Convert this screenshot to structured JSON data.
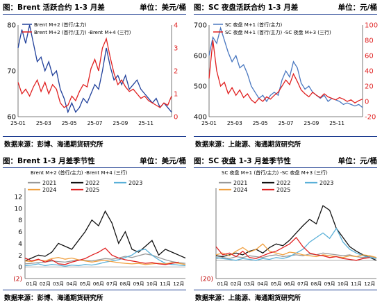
{
  "panels": [
    {
      "title": "图：Brent 活跃合约 1-3 月差",
      "unit": "单位：美元/桶",
      "source": "数据来源：彭博、海通期货研究所"
    },
    {
      "title": "图：SC 夜盘活跃合约 1-3 月差",
      "unit": "单位：元/桶",
      "source": "数据来源：上能源、海通期货研究所"
    },
    {
      "title": "图：Brent 1-3 月差季节性",
      "unit": "单位：美元/桶",
      "source": "数据来源：彭博、海通期货研究所"
    },
    {
      "title": "图：SC 夜盘 1-3 月差季节性",
      "unit": "单位：元/桶",
      "source": "数据来源：上能源、海通期货研究所"
    }
  ],
  "chart_data": [
    {
      "type": "line",
      "x_tick_labels": [
        "25-01",
        "25-03",
        "25-05",
        "25-07",
        "25-09",
        "25-11"
      ],
      "y_left_ticks": [
        "80",
        "70",
        "60"
      ],
      "y_left_lim": [
        60,
        80
      ],
      "y_right_ticks": [
        "4",
        "3",
        "2",
        "1",
        "0"
      ],
      "y_right_lim": [
        0,
        4
      ],
      "series": [
        {
          "name": "Brent M+2 (首行/主力)",
          "axis": "left",
          "color": "#1f3f9a",
          "x": [
            0,
            0.3,
            0.6,
            0.9,
            1.2,
            1.5,
            1.8,
            2.1,
            2.4,
            2.7,
            3.0,
            3.3,
            3.6,
            3.9,
            4.2,
            4.5,
            4.8,
            5.1,
            5.4,
            5.7,
            6.0,
            6.3,
            6.6,
            6.9,
            7.2,
            7.5,
            7.8,
            8.1,
            8.4,
            8.7,
            9.0,
            9.3,
            9.6,
            9.9,
            10.2,
            10.5,
            10.8,
            11.1,
            11.4,
            11.7,
            12.0
          ],
          "values": [
            75,
            79,
            76,
            80,
            76,
            72,
            73,
            70,
            72,
            69,
            70,
            66,
            64,
            61,
            63,
            61,
            62,
            64,
            63,
            65,
            67,
            66,
            70,
            75,
            71,
            68,
            69,
            67,
            69,
            66,
            67,
            68,
            66,
            65,
            64,
            63,
            64,
            62,
            63,
            62,
            61
          ]
        },
        {
          "name": "Brent M+2 (首行/主力) -Brent M+4 (三行)",
          "axis": "right",
          "color": "#e02020",
          "x": [
            0,
            0.3,
            0.6,
            0.9,
            1.2,
            1.5,
            1.8,
            2.1,
            2.4,
            2.7,
            3.0,
            3.3,
            3.6,
            3.9,
            4.2,
            4.5,
            4.8,
            5.1,
            5.4,
            5.7,
            6.0,
            6.3,
            6.6,
            6.9,
            7.2,
            7.5,
            7.8,
            8.1,
            8.4,
            8.7,
            9.0,
            9.3,
            9.6,
            9.9,
            10.2,
            10.5,
            10.8,
            11.1,
            11.4,
            11.7,
            12.0
          ],
          "values": [
            1.5,
            1.0,
            1.2,
            0.9,
            1.3,
            1.6,
            1.1,
            1.5,
            1.0,
            1.4,
            1.2,
            0.6,
            0.4,
            0.5,
            0.9,
            0.7,
            1.1,
            1.4,
            1.3,
            2.1,
            2.5,
            2.0,
            3.0,
            3.4,
            2.6,
            1.9,
            1.4,
            1.6,
            1.3,
            1.1,
            1.2,
            1.0,
            0.8,
            0.9,
            0.7,
            0.6,
            0.5,
            0.4,
            0.6,
            0.5,
            0.9
          ]
        }
      ]
    },
    {
      "type": "line",
      "x_tick_labels": [
        "25-01",
        "25-03",
        "25-05",
        "25-07",
        "25-09",
        "25-11"
      ],
      "y_left_ticks": [
        "700",
        "600",
        "500",
        "400"
      ],
      "y_left_lim": [
        400,
        700
      ],
      "y_right_ticks": [
        "100",
        "80",
        "60",
        "40",
        "20",
        "0",
        "-20"
      ],
      "y_right_lim": [
        -20,
        100
      ],
      "series": [
        {
          "name": "SC 夜盘 M+1 (首行/主力)",
          "axis": "left",
          "color": "#4a78c0",
          "x": [
            0,
            0.3,
            0.6,
            0.9,
            1.2,
            1.5,
            1.8,
            2.1,
            2.4,
            2.7,
            3.0,
            3.3,
            3.6,
            3.9,
            4.2,
            4.5,
            4.8,
            5.1,
            5.4,
            5.7,
            6.0,
            6.3,
            6.6,
            6.9,
            7.2,
            7.5,
            7.8,
            8.1,
            8.4,
            8.7,
            9.0,
            9.3,
            9.6,
            9.9,
            10.2,
            10.5,
            10.8,
            11.1,
            11.4,
            11.7,
            12.0
          ],
          "values": [
            600,
            660,
            640,
            690,
            650,
            610,
            580,
            600,
            560,
            570,
            540,
            500,
            480,
            460,
            470,
            450,
            470,
            480,
            470,
            520,
            550,
            530,
            580,
            560,
            510,
            490,
            500,
            480,
            470,
            460,
            470,
            450,
            460,
            455,
            450,
            440,
            445,
            440,
            435,
            440,
            430
          ]
        },
        {
          "name": "SC 夜盘 M+1 (首行/主力) -SC 夜盘 M+3 (三行)",
          "axis": "right",
          "color": "#e02020",
          "x": [
            0,
            0.3,
            0.6,
            0.9,
            1.2,
            1.5,
            1.8,
            2.1,
            2.4,
            2.7,
            3.0,
            3.3,
            3.6,
            3.9,
            4.2,
            4.5,
            4.8,
            5.1,
            5.4,
            5.7,
            6.0,
            6.3,
            6.6,
            6.9,
            7.2,
            7.5,
            7.8,
            8.1,
            8.4,
            8.7,
            9.0,
            9.3,
            9.6,
            9.9,
            10.2,
            10.5,
            10.8,
            11.1,
            11.4,
            11.7,
            12.0
          ],
          "values": [
            30,
            80,
            40,
            20,
            25,
            10,
            18,
            8,
            15,
            5,
            10,
            2,
            -2,
            4,
            0,
            6,
            3,
            8,
            12,
            20,
            28,
            22,
            36,
            26,
            15,
            10,
            6,
            12,
            8,
            5,
            10,
            6,
            4,
            2,
            5,
            3,
            0,
            2,
            -2,
            1,
            3
          ]
        }
      ]
    },
    {
      "type": "line",
      "x_tick_labels": [
        "01月",
        "02月",
        "03月",
        "04月",
        "05月",
        "06月",
        "07月",
        "08月",
        "09月",
        "10月",
        "11月",
        "12月"
      ],
      "y_ticks": [
        "12",
        "10",
        "8",
        "6",
        "4",
        "2",
        "0",
        "(2)"
      ],
      "ylim": [
        -2,
        12
      ],
      "legend_title": "Brent M+2 (首行/主力) -Brent M+4 (三行)",
      "series": [
        {
          "name": "2021",
          "color": "#999999",
          "x": [
            0,
            0.5,
            1,
            1.5,
            2,
            2.5,
            3,
            3.5,
            4,
            4.5,
            5,
            5.5,
            6,
            6.5,
            7,
            7.5,
            8,
            8.5,
            9,
            9.5,
            10,
            10.5,
            11,
            11.5,
            12
          ],
          "values": [
            0.5,
            0.6,
            0.7,
            0.8,
            1.0,
            0.9,
            0.8,
            1.0,
            1.2,
            1.1,
            1.0,
            1.2,
            1.4,
            1.3,
            1.5,
            1.8,
            1.6,
            1.9,
            2.2,
            2.0,
            1.6,
            1.2,
            0.9,
            0.7,
            0.6
          ]
        },
        {
          "name": "2022",
          "color": "#111111",
          "x": [
            0,
            0.5,
            1,
            1.5,
            2,
            2.5,
            3,
            3.5,
            4,
            4.5,
            5,
            5.5,
            6,
            6.5,
            7,
            7.5,
            8,
            8.5,
            9,
            9.5,
            10,
            10.5,
            11,
            11.5,
            12
          ],
          "values": [
            1.0,
            1.5,
            2.0,
            1.8,
            2.5,
            4.0,
            3.5,
            3.0,
            4.5,
            6.0,
            8.0,
            7.0,
            9.5,
            7.5,
            4.0,
            6.0,
            3.0,
            2.5,
            3.5,
            4.5,
            2.0,
            3.0,
            2.5,
            2.0,
            1.5
          ]
        },
        {
          "name": "2023",
          "color": "#5ab0d8",
          "x": [
            0,
            0.5,
            1,
            1.5,
            2,
            2.5,
            3,
            3.5,
            4,
            4.5,
            5,
            5.5,
            6,
            6.5,
            7,
            7.5,
            8,
            8.5,
            9,
            9.5,
            10,
            10.5,
            11,
            11.5,
            12
          ],
          "values": [
            0.2,
            0.3,
            0.5,
            0.2,
            0.4,
            0.3,
            0.1,
            0.3,
            0.2,
            0.4,
            0.3,
            0.5,
            0.8,
            1.0,
            1.2,
            1.6,
            2.0,
            2.8,
            3.0,
            2.0,
            1.2,
            0.6,
            0.4,
            0.3,
            0.2
          ]
        },
        {
          "name": "2024",
          "color": "#f0a040",
          "x": [
            0,
            0.5,
            1,
            1.5,
            2,
            2.5,
            3,
            3.5,
            4,
            4.5,
            5,
            5.5,
            6,
            6.5,
            7,
            7.5,
            8,
            8.5,
            9,
            9.5,
            10,
            10.5,
            11,
            11.5,
            12
          ],
          "values": [
            1.0,
            0.9,
            1.2,
            1.0,
            1.4,
            1.6,
            1.3,
            1.5,
            1.2,
            1.0,
            0.8,
            1.0,
            1.1,
            0.9,
            0.7,
            0.6,
            0.5,
            0.6,
            0.4,
            0.5,
            0.6,
            0.5,
            0.7,
            0.6,
            0.4
          ]
        },
        {
          "name": "2025",
          "color": "#e02020",
          "x": [
            0,
            0.5,
            1,
            1.5,
            2,
            2.5,
            3,
            3.5,
            4,
            4.5,
            5,
            5.5,
            6,
            6.5,
            7,
            7.5,
            8,
            8.5,
            9,
            9.5,
            10,
            10.5,
            11,
            11.5
          ],
          "values": [
            1.5,
            1.0,
            1.3,
            0.8,
            1.2,
            0.5,
            0.4,
            0.8,
            1.1,
            1.4,
            2.0,
            2.5,
            3.2,
            2.0,
            1.5,
            1.2,
            1.0,
            0.8,
            0.6,
            0.7,
            0.5,
            0.4,
            0.6,
            0.8
          ]
        }
      ]
    },
    {
      "type": "line",
      "x_tick_labels": [
        "01月",
        "02月",
        "03月",
        "04月",
        "05月",
        "06月",
        "07月",
        "08月",
        "09月",
        "10月",
        "11月",
        "12月"
      ],
      "y_ticks": [
        "(20)"
      ],
      "ylim": [
        -20,
        70
      ],
      "legend_title": "SC 夜盘 M+1 (首行/主力) -SC 夜盘 M+3 (三行)",
      "series": [
        {
          "name": "2021",
          "color": "#999999",
          "x": [
            0,
            0.5,
            1,
            1.5,
            2,
            2.5,
            3,
            3.5,
            4,
            4.5,
            5,
            5.5,
            6,
            6.5,
            7,
            7.5,
            8,
            8.5,
            9,
            9.5,
            10,
            10.5,
            11,
            11.5,
            12
          ],
          "values": [
            2,
            3,
            2,
            4,
            3,
            5,
            4,
            3,
            5,
            6,
            4,
            5,
            6,
            5,
            7,
            6,
            8,
            7,
            6,
            5,
            6,
            4,
            3,
            4,
            3
          ]
        },
        {
          "name": "2022",
          "color": "#111111",
          "x": [
            0,
            0.5,
            1,
            1.5,
            2,
            2.5,
            3,
            3.5,
            4,
            4.5,
            5,
            5.5,
            6,
            6.5,
            7,
            7.5,
            8,
            8.5,
            9,
            9.5,
            10,
            10.5,
            11,
            11.5,
            12
          ],
          "values": [
            5,
            4,
            6,
            8,
            6,
            10,
            12,
            8,
            14,
            18,
            16,
            22,
            30,
            38,
            45,
            40,
            60,
            55,
            35,
            25,
            15,
            10,
            6,
            3,
            0
          ]
        },
        {
          "name": "2023",
          "color": "#5ab0d8",
          "x": [
            0,
            0.5,
            1,
            1.5,
            2,
            2.5,
            3,
            3.5,
            4,
            4.5,
            5,
            5.5,
            6,
            6.5,
            7,
            7.5,
            8,
            8.5,
            9,
            9.5,
            10,
            10.5,
            11,
            11.5,
            12
          ],
          "values": [
            3,
            2,
            1,
            0,
            2,
            1,
            0,
            2,
            1,
            3,
            2,
            4,
            8,
            12,
            20,
            25,
            30,
            24,
            35,
            20,
            12,
            8,
            5,
            3,
            2
          ]
        },
        {
          "name": "2024",
          "color": "#f0a040",
          "x": [
            0,
            0.5,
            1,
            1.5,
            2,
            2.5,
            3,
            3.5,
            4,
            4.5,
            5,
            5.5,
            6,
            6.5,
            7,
            7.5,
            8,
            8.5,
            9,
            9.5,
            10,
            10.5,
            11,
            11.5,
            12
          ],
          "values": [
            6,
            8,
            5,
            10,
            14,
            9,
            12,
            18,
            10,
            8,
            6,
            9,
            8,
            6,
            5,
            4,
            6,
            5,
            4,
            3,
            5,
            4,
            6,
            5,
            3
          ]
        },
        {
          "name": "2025",
          "color": "#e02020",
          "x": [
            0,
            0.5,
            1,
            1.5,
            2,
            2.5,
            3,
            3.5,
            4,
            4.5,
            5,
            5.5,
            6,
            6.5,
            7,
            7.5,
            8,
            8.5,
            9,
            9.5,
            10,
            10.5,
            11,
            11.5
          ],
          "values": [
            15,
            6,
            8,
            4,
            10,
            3,
            2,
            5,
            8,
            10,
            14,
            18,
            25,
            15,
            8,
            6,
            5,
            3,
            4,
            2,
            1,
            0,
            2,
            3
          ]
        }
      ]
    }
  ]
}
